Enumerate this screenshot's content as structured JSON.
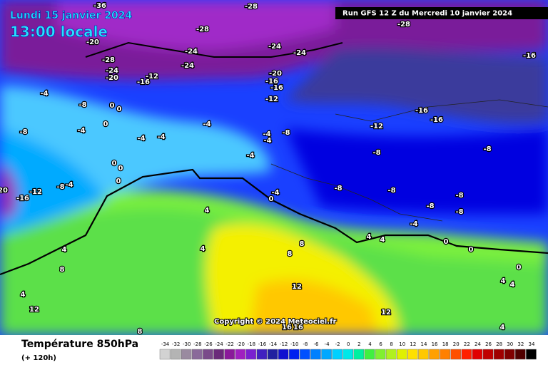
{
  "header": {
    "date": "Lundi 15 janvier 2024",
    "time": "13:00 locale",
    "run": "Run GFS 12 Z du Mercredi 10 janvier 2024"
  },
  "footer": {
    "title": "Température 850hPa",
    "subtitle": "(+ 120h)"
  },
  "copyright": "Copyright © 2024 Meteociel.fr",
  "legend": {
    "labels": [
      "-34",
      "-32",
      "-30",
      "-28",
      "-26",
      "-24",
      "-22",
      "-20",
      "-18",
      "-16",
      "-14",
      "-12",
      "-10",
      "-8",
      "-6",
      "-4",
      "-2",
      "0",
      "2",
      "4",
      "6",
      "8",
      "10",
      "12",
      "14",
      "16",
      "18",
      "20",
      "22",
      "24",
      "26",
      "28",
      "30",
      "32",
      "34"
    ],
    "colors": [
      "#d2d2d2",
      "#b4b4b4",
      "#9a8aa0",
      "#8a6a9a",
      "#7a4a8a",
      "#6a2a7a",
      "#8a1a9a",
      "#a020c0",
      "#7a20d0",
      "#4020c0",
      "#2020a0",
      "#1010d0",
      "#0020f0",
      "#0050ff",
      "#0080ff",
      "#00a8ff",
      "#00d0ff",
      "#00e8e8",
      "#00f0a0",
      "#40f040",
      "#80f030",
      "#b0f020",
      "#e0f000",
      "#ffe000",
      "#ffc800",
      "#ffa000",
      "#ff8000",
      "#ff5000",
      "#ff2000",
      "#e00000",
      "#c00000",
      "#a00000",
      "#800000",
      "#500000",
      "#000000"
    ]
  },
  "contour_labels": [
    "-28",
    "-36",
    "-28",
    "-28",
    "-20",
    "-24",
    "-24",
    "-24",
    "-16",
    "-28",
    "-24",
    "-24",
    "-20",
    "-12",
    "-16",
    "-20",
    "-16",
    "-16",
    "-12",
    "-8",
    "-4",
    "0",
    "0",
    "-16",
    "-16",
    "-12",
    "-8",
    "-4",
    "0",
    "-4",
    "-4",
    "-4",
    "-4",
    "-4",
    "-8",
    "-8",
    "-8",
    "-4",
    "0",
    "0",
    "-4",
    "0",
    "-8",
    "-8",
    "-8",
    "-8",
    "-8",
    "20",
    "-16",
    "-12",
    "-8",
    "-4",
    "0",
    "4",
    "4",
    "4",
    "8",
    "4",
    "12",
    "8",
    "4",
    "4",
    "0",
    "0",
    "-4",
    "8",
    "8",
    "12",
    "12",
    "16",
    "16",
    "4",
    "4",
    "0",
    "4"
  ]
}
